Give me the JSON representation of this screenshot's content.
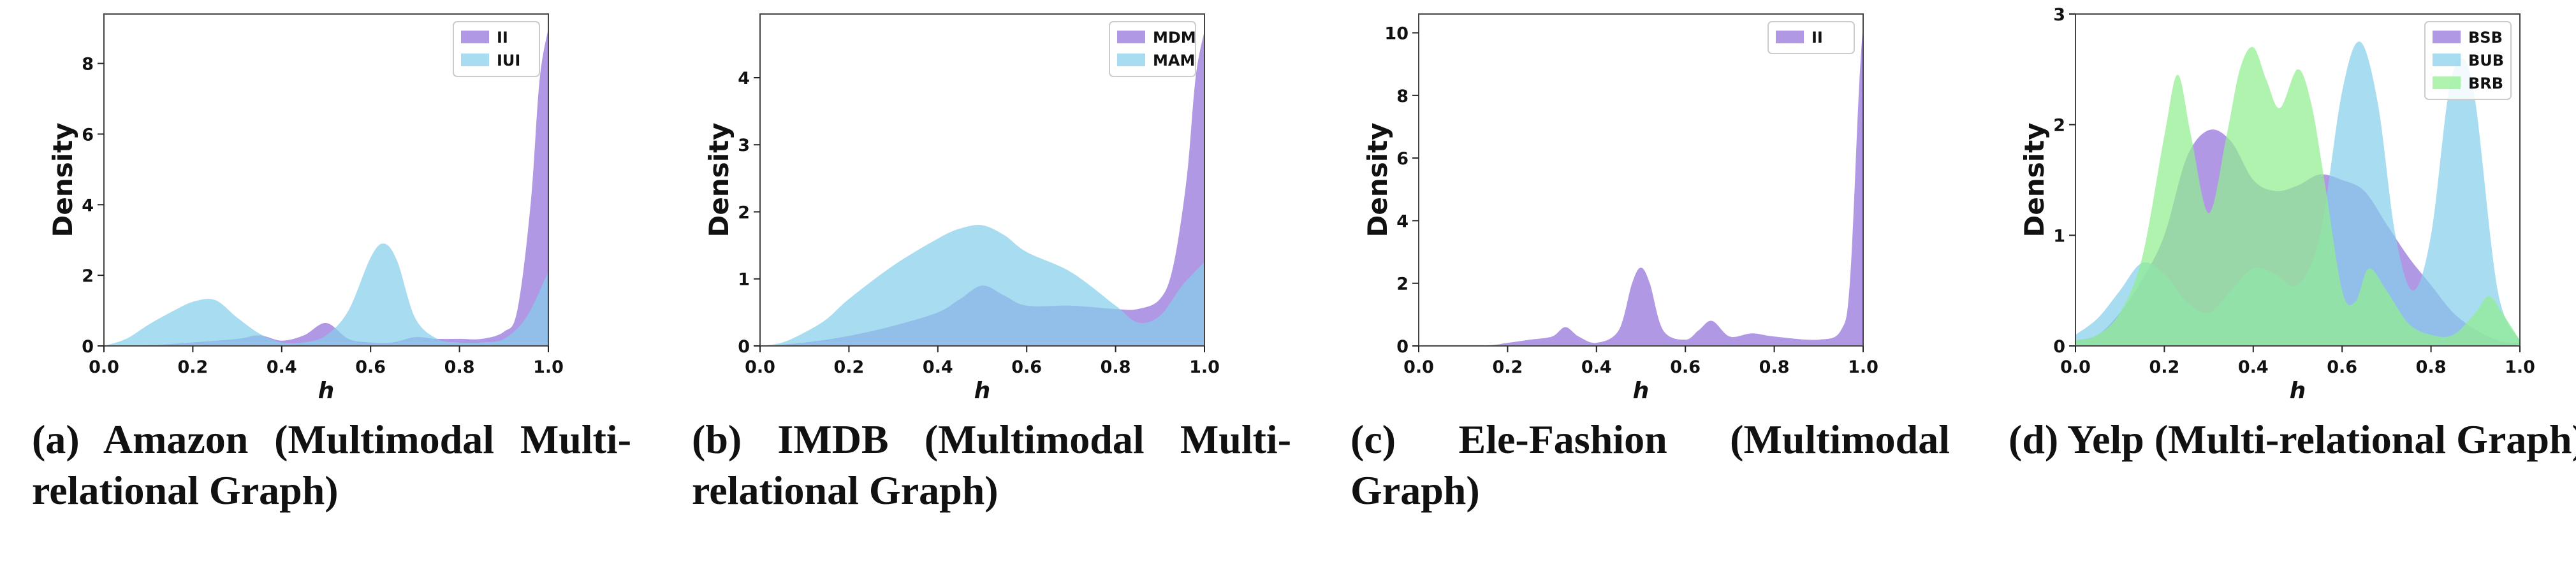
{
  "colors": {
    "purple": "#9370DB",
    "lightblue": "#87CEEB",
    "lightgreen": "#90EE90"
  },
  "chart_data": [
    {
      "type": "area",
      "caption": "(a) Amazon (Multimodal Multi-relational Graph)",
      "xlabel": "h",
      "ylabel": "Density",
      "xlim": [
        0.0,
        1.0
      ],
      "ylim": [
        0,
        9.4
      ],
      "xticks": [
        "0.0",
        "0.2",
        "0.4",
        "0.6",
        "0.8",
        "1.0"
      ],
      "yticks": [
        "0",
        "2",
        "4",
        "6",
        "8"
      ],
      "legend": "top-right",
      "series": [
        {
          "name": "II",
          "color": "purple",
          "x": [
            0.0,
            0.1,
            0.2,
            0.3,
            0.35,
            0.4,
            0.45,
            0.5,
            0.55,
            0.6,
            0.65,
            0.7,
            0.75,
            0.8,
            0.85,
            0.9,
            0.93,
            0.96,
            0.98,
            1.0
          ],
          "y": [
            0,
            0.02,
            0.1,
            0.2,
            0.3,
            0.15,
            0.3,
            0.65,
            0.2,
            0.1,
            0.1,
            0.25,
            0.2,
            0.2,
            0.2,
            0.4,
            1.0,
            4.0,
            7.5,
            9.0
          ]
        },
        {
          "name": "IUI",
          "color": "lightblue",
          "x": [
            0.0,
            0.05,
            0.1,
            0.15,
            0.2,
            0.25,
            0.3,
            0.35,
            0.4,
            0.45,
            0.5,
            0.55,
            0.6,
            0.63,
            0.66,
            0.7,
            0.75,
            0.8,
            0.85,
            0.9,
            0.95,
            1.0
          ],
          "y": [
            0,
            0.2,
            0.6,
            0.95,
            1.25,
            1.3,
            0.8,
            0.35,
            0.1,
            0.1,
            0.3,
            1.0,
            2.5,
            2.9,
            2.4,
            0.8,
            0.2,
            0.1,
            0.1,
            0.2,
            0.8,
            2.1
          ]
        }
      ]
    },
    {
      "type": "area",
      "caption": "(b) IMDB (Multimodal Multi-relational Graph)",
      "xlabel": "h",
      "ylabel": "Density",
      "xlim": [
        0.0,
        1.0
      ],
      "ylim": [
        0,
        4.95
      ],
      "xticks": [
        "0.0",
        "0.2",
        "0.4",
        "0.6",
        "0.8",
        "1.0"
      ],
      "yticks": [
        "0",
        "1",
        "2",
        "3",
        "4"
      ],
      "legend": "top-right",
      "series": [
        {
          "name": "MDM",
          "color": "purple",
          "x": [
            0.0,
            0.1,
            0.2,
            0.3,
            0.4,
            0.45,
            0.5,
            0.55,
            0.6,
            0.7,
            0.8,
            0.85,
            0.9,
            0.93,
            0.96,
            0.98,
            1.0
          ],
          "y": [
            0,
            0.05,
            0.15,
            0.3,
            0.5,
            0.7,
            0.9,
            0.75,
            0.6,
            0.6,
            0.55,
            0.55,
            0.7,
            1.2,
            2.5,
            4.0,
            4.7
          ]
        },
        {
          "name": "MAM",
          "color": "lightblue",
          "x": [
            0.0,
            0.05,
            0.1,
            0.15,
            0.2,
            0.3,
            0.4,
            0.45,
            0.5,
            0.55,
            0.6,
            0.7,
            0.8,
            0.85,
            0.9,
            0.95,
            1.0
          ],
          "y": [
            0,
            0.05,
            0.2,
            0.4,
            0.7,
            1.2,
            1.6,
            1.75,
            1.8,
            1.65,
            1.4,
            1.1,
            0.6,
            0.35,
            0.45,
            0.9,
            1.25
          ]
        }
      ]
    },
    {
      "type": "area",
      "caption": "(c) Ele-Fashion (Multimodal Graph)",
      "xlabel": "h",
      "ylabel": "Density",
      "xlim": [
        0.0,
        1.0
      ],
      "ylim": [
        0,
        10.6
      ],
      "xticks": [
        "0.0",
        "0.2",
        "0.4",
        "0.6",
        "0.8",
        "1.0"
      ],
      "yticks": [
        "0",
        "2",
        "4",
        "6",
        "8",
        "10"
      ],
      "legend": "top-right",
      "series": [
        {
          "name": "II",
          "color": "purple",
          "x": [
            0.0,
            0.15,
            0.2,
            0.25,
            0.3,
            0.33,
            0.36,
            0.4,
            0.45,
            0.48,
            0.5,
            0.52,
            0.55,
            0.6,
            0.63,
            0.66,
            0.7,
            0.75,
            0.8,
            0.9,
            0.95,
            0.97,
            0.99,
            1.0
          ],
          "y": [
            0,
            0.02,
            0.1,
            0.2,
            0.3,
            0.6,
            0.3,
            0.1,
            0.5,
            2.0,
            2.5,
            2.0,
            0.5,
            0.2,
            0.5,
            0.8,
            0.3,
            0.4,
            0.3,
            0.2,
            0.5,
            2.0,
            8.0,
            10.3
          ]
        }
      ]
    },
    {
      "type": "area",
      "caption": "(d) Yelp (Multi-relational Graph)",
      "xlabel": "h",
      "ylabel": "Density",
      "xlim": [
        0.0,
        1.0
      ],
      "ylim": [
        0,
        3.0
      ],
      "xticks": [
        "0.0",
        "0.2",
        "0.4",
        "0.6",
        "0.8",
        "1.0"
      ],
      "yticks": [
        "0",
        "1",
        "2",
        "3"
      ],
      "legend": "top-right",
      "series": [
        {
          "name": "BSB",
          "color": "purple",
          "x": [
            0.0,
            0.05,
            0.1,
            0.15,
            0.2,
            0.25,
            0.3,
            0.35,
            0.4,
            0.45,
            0.5,
            0.55,
            0.6,
            0.65,
            0.7,
            0.75,
            0.8,
            0.85,
            0.9,
            0.95,
            1.0
          ],
          "y": [
            0.05,
            0.1,
            0.3,
            0.6,
            1.0,
            1.7,
            1.95,
            1.85,
            1.5,
            1.4,
            1.45,
            1.55,
            1.5,
            1.4,
            1.1,
            0.8,
            0.55,
            0.3,
            0.15,
            0.05,
            0.02
          ]
        },
        {
          "name": "BUB",
          "color": "lightblue",
          "x": [
            0.0,
            0.05,
            0.1,
            0.15,
            0.2,
            0.25,
            0.3,
            0.35,
            0.4,
            0.45,
            0.5,
            0.55,
            0.6,
            0.64,
            0.68,
            0.72,
            0.76,
            0.8,
            0.84,
            0.87,
            0.9,
            0.95,
            1.0
          ],
          "y": [
            0.1,
            0.25,
            0.5,
            0.75,
            0.65,
            0.4,
            0.3,
            0.5,
            0.7,
            0.65,
            0.55,
            1.0,
            2.3,
            2.75,
            2.2,
            1.0,
            0.5,
            1.0,
            2.3,
            2.6,
            2.2,
            0.5,
            0.05
          ]
        },
        {
          "name": "BRB",
          "color": "lightgreen",
          "x": [
            0.0,
            0.05,
            0.1,
            0.15,
            0.2,
            0.23,
            0.26,
            0.3,
            0.34,
            0.37,
            0.4,
            0.43,
            0.46,
            0.5,
            0.53,
            0.56,
            0.6,
            0.63,
            0.66,
            0.7,
            0.75,
            0.8,
            0.85,
            0.9,
            0.93,
            0.96,
            1.0
          ],
          "y": [
            0.05,
            0.1,
            0.3,
            0.8,
            1.9,
            2.45,
            1.9,
            1.2,
            1.9,
            2.5,
            2.7,
            2.4,
            2.15,
            2.5,
            2.2,
            1.5,
            0.5,
            0.4,
            0.7,
            0.5,
            0.2,
            0.1,
            0.1,
            0.3,
            0.45,
            0.3,
            0.05
          ]
        }
      ]
    }
  ]
}
